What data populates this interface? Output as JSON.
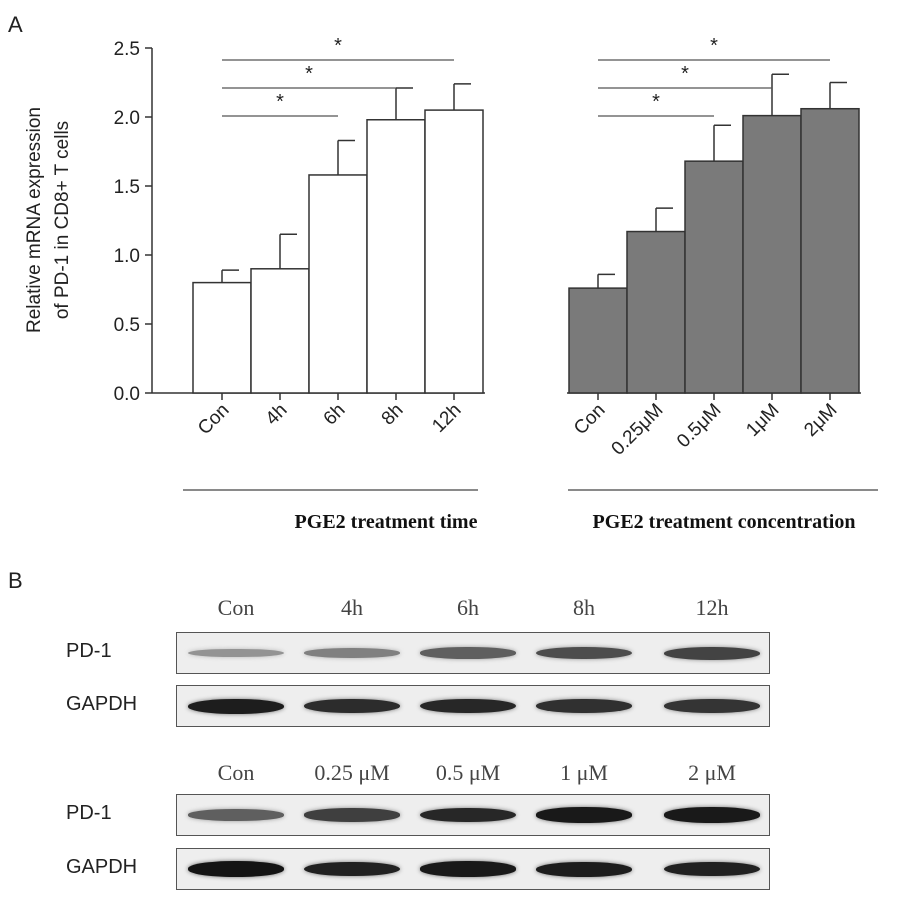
{
  "panel_a_label": "A",
  "panel_b_label": "B",
  "chart_data": {
    "type": "bar",
    "ylabel_line1": "Relative mRNA expression",
    "ylabel_line2": "of PD-1 in CD8+ T cells",
    "ylim": [
      0,
      2.5
    ],
    "yticks": [
      "0.0",
      "0.5",
      "1.0",
      "1.5",
      "2.0",
      "2.5"
    ],
    "grid": false,
    "significance_marker": "*",
    "groups": [
      {
        "label": "PGE2 treatment time",
        "color": "#ffffff",
        "categories": [
          "Con",
          "4h",
          "6h",
          "8h",
          "12h"
        ],
        "values": [
          0.8,
          0.9,
          1.58,
          1.98,
          2.05
        ],
        "errors": [
          0.09,
          0.25,
          0.25,
          0.23,
          0.19
        ],
        "significance": [
          {
            "from": "Con",
            "to": "6h",
            "level": 1
          },
          {
            "from": "Con",
            "to": "8h",
            "level": 2
          },
          {
            "from": "Con",
            "to": "12h",
            "level": 3
          }
        ]
      },
      {
        "label": "PGE2 treatment concentration",
        "color": "#7a7a7a",
        "categories": [
          "Con",
          "0.25μM",
          "0.5μM",
          "1μM",
          "2μM"
        ],
        "values": [
          0.76,
          1.17,
          1.68,
          2.01,
          2.06
        ],
        "errors": [
          0.1,
          0.17,
          0.26,
          0.3,
          0.19
        ],
        "significance": [
          {
            "from": "Con",
            "to": "0.5μM",
            "level": 1
          },
          {
            "from": "Con",
            "to": "1μM",
            "level": 2
          },
          {
            "from": "Con",
            "to": "2μM",
            "level": 3
          }
        ]
      }
    ]
  },
  "western_blot": {
    "blots": [
      {
        "lanes": [
          "Con",
          "4h",
          "6h",
          "8h",
          "12h"
        ],
        "rows": [
          {
            "label": "PD-1",
            "intensity": [
              0.28,
              0.38,
              0.55,
              0.65,
              0.7
            ]
          },
          {
            "label": "GAPDH",
            "intensity": [
              0.9,
              0.82,
              0.85,
              0.8,
              0.78
            ]
          }
        ]
      },
      {
        "lanes": [
          "Con",
          "0.25 μM",
          "0.5 μM",
          "1 μM",
          "2 μM"
        ],
        "rows": [
          {
            "label": "PD-1",
            "intensity": [
              0.55,
              0.72,
              0.85,
              0.92,
              0.92
            ]
          },
          {
            "label": "GAPDH",
            "intensity": [
              0.95,
              0.88,
              0.92,
              0.9,
              0.88
            ]
          }
        ]
      }
    ]
  }
}
